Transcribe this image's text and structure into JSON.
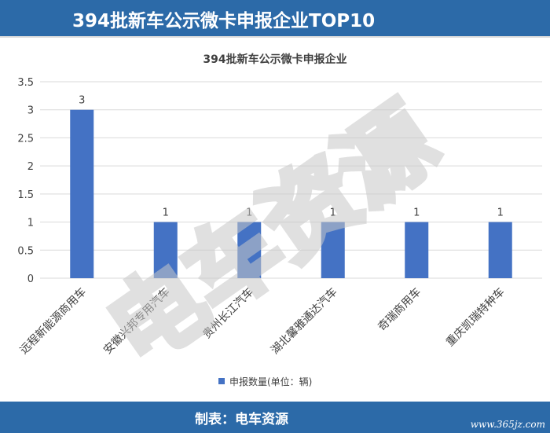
{
  "header": {
    "title": "394批新车公示微卡申报企业TOP10"
  },
  "footer": {
    "credit": "制表：电车资源",
    "site": "www.365jz.com"
  },
  "watermark": {
    "text": "电车资源"
  },
  "colors": {
    "header_bg": "#2c6aa8",
    "bar": "#4472c4",
    "grid": "#d9d9d9",
    "axis_text": "#404040"
  },
  "chart_data": {
    "type": "bar",
    "title": "394批新车公示微卡申报企业",
    "categories": [
      "远程新能源商用车",
      "安徽兴邦专用汽车",
      "贵州长江汽车",
      "湖北馨雅通达汽车",
      "奇瑞商用车",
      "重庆凯瑞特种车"
    ],
    "series": [
      {
        "name": "申报数量(单位：辆)",
        "values": [
          3,
          1,
          1,
          1,
          1,
          1
        ]
      }
    ],
    "data_labels": [
      "3",
      "1",
      "1",
      "1",
      "1",
      "1"
    ],
    "yticks": [
      "0",
      "0.5",
      "1",
      "1.5",
      "2",
      "2.5",
      "3",
      "3.5"
    ],
    "ylim": [
      0,
      3.5
    ],
    "grid": true,
    "legend_position": "bottom",
    "xlabel": "",
    "ylabel": ""
  }
}
